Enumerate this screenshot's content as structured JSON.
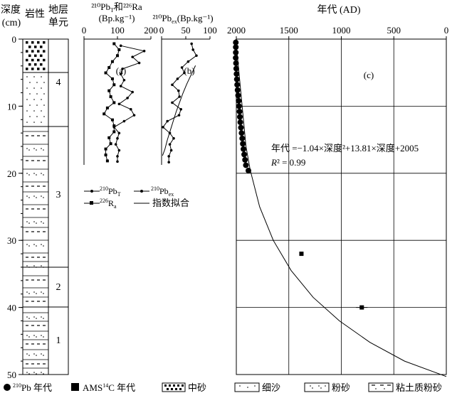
{
  "header": {
    "depth_title_l1": "深度",
    "depth_title_l2": "(cm)",
    "lith_title": "岩性",
    "unit_title_l1": "地层",
    "unit_title_l2": "单元"
  },
  "units": [
    "4",
    "3",
    "2",
    "1"
  ],
  "depth_ticks": [
    "0",
    "10",
    "20",
    "30",
    "40",
    "50"
  ],
  "panel_a": {
    "title_l1": "²¹⁰Pb",
    "title_l1_sub": "T",
    "title_l1_mid": "和",
    "title_l1_end": "²²⁶Ra",
    "title_l2": "(Bp.kg⁻¹)",
    "ticks": [
      "0",
      "100",
      "200"
    ],
    "letter": "(a)"
  },
  "panel_b": {
    "title": "²¹⁰Pb",
    "title_sub": "ex",
    "title_end": "(Bp.kg⁻¹)",
    "ticks": [
      "0",
      "50",
      "100"
    ],
    "letter": "(b)"
  },
  "panel_c": {
    "title": "年代 (AD)",
    "ticks": [
      "2000",
      "1500",
      "1000",
      "500",
      "0"
    ],
    "letter": "(c)",
    "equation": "年代 =−1.04×深度²+13.81×深度+2005",
    "r2_label": "R",
    "r2_value": "² = 0.99"
  },
  "legend_ab": {
    "pbT_sup": "210",
    "pbT_base": "Pb",
    "pbT_sub": "T",
    "ra_sup": "226",
    "ra_base": "R",
    "ra_sub": "a",
    "pbex_sup": "210",
    "pbex_base": "Pb",
    "pbex_sub": "ex",
    "fit": "指数拟合"
  },
  "legend_bottom": {
    "pb_age_sup": "210",
    "pb_age": "Pb 年代",
    "ams_pre": "AMS",
    "ams_sup": "14",
    "ams_post": "C 年代",
    "medium_sand": "中砂",
    "fine_sand": "细沙",
    "silt": "粉砂",
    "clayey_silt": "粘土质粉砂"
  },
  "chart_data": [
    {
      "type": "line",
      "panel": "a",
      "xlim": [
        0,
        200
      ],
      "ylim": [
        0,
        50
      ],
      "ylabel": "深度 (cm)",
      "series": [
        {
          "name": "²¹⁰PbT",
          "x": [
            110,
            180,
            145,
            165,
            115,
            110,
            120,
            110,
            145,
            130,
            105,
            140,
            150,
            120,
            90,
            105,
            100,
            95,
            105,
            100,
            100
          ],
          "y": [
            1,
            1.8,
            2.7,
            3.6,
            4.5,
            5.3,
            6.2,
            7.1,
            8,
            8.9,
            9.8,
            10.6,
            11.5,
            12.4,
            13.3,
            14.2,
            15,
            15.9,
            16.8,
            17.7,
            18.5
          ]
        },
        {
          "name": "²²⁶Ra",
          "x": [
            90,
            105,
            100,
            85,
            75,
            65,
            85,
            90,
            75,
            80,
            90,
            70,
            60,
            85,
            90,
            90,
            75,
            80,
            65,
            65,
            70
          ],
          "y": [
            0.7,
            1.6,
            2.5,
            3.4,
            4.3,
            5.1,
            6,
            6.9,
            7.8,
            8.7,
            9.6,
            10.4,
            11.3,
            12.2,
            13.1,
            14,
            14.9,
            15.8,
            16.6,
            17.5,
            18.4
          ]
        }
      ]
    },
    {
      "type": "line",
      "panel": "b",
      "xlim": [
        0,
        100
      ],
      "ylim": [
        0,
        50
      ],
      "series": [
        {
          "name": "²¹⁰Pbex",
          "x": [
            62,
            65,
            72,
            55,
            42,
            47,
            33,
            22,
            35,
            37,
            22,
            40,
            36,
            12,
            3,
            17,
            25,
            17,
            20,
            15,
            15
          ],
          "y": [
            0.7,
            1.6,
            2.5,
            3.4,
            4.3,
            5.1,
            6,
            6.9,
            7.8,
            8.7,
            9.6,
            10.6,
            11.5,
            12.4,
            13.3,
            14.2,
            15,
            15.9,
            16.8,
            17.7,
            18.6
          ]
        },
        {
          "name": "指数拟合",
          "x": [
            70,
            61,
            52,
            44,
            37,
            30,
            24,
            18,
            12,
            7,
            2
          ],
          "y": [
            4,
            5.4,
            6.8,
            8.2,
            9.6,
            11,
            12.4,
            13.8,
            15.2,
            16.6,
            17.6
          ]
        }
      ]
    },
    {
      "type": "scatter",
      "panel": "c",
      "xlim": [
        2000,
        0
      ],
      "ylim": [
        0,
        50
      ],
      "title": "年代 (AD)",
      "series": [
        {
          "name": "²¹⁰Pb 年代",
          "x": [
            2005,
            2005,
            2005,
            2006,
            2003,
            2001,
            1998,
            1995,
            1992,
            1988,
            1983,
            1978,
            1974,
            1969,
            1966,
            1962,
            1956,
            1950,
            1944,
            1938,
            1932,
            1925,
            1917,
            1909,
            1885
          ],
          "y": [
            0.5,
            1.2,
            2,
            2.8,
            3.6,
            4.4,
            5.2,
            6,
            6.8,
            7.6,
            8.4,
            9.2,
            10,
            10.8,
            11.6,
            12.4,
            13.2,
            14,
            14.8,
            15.6,
            16.4,
            17.2,
            18,
            18.8,
            19.6
          ]
        },
        {
          "name": "AMS¹⁴C 年代",
          "x": [
            1380,
            805
          ],
          "y": [
            32,
            40
          ],
          "x_err": [
            20,
            55
          ]
        },
        {
          "name": "fit",
          "x": [
            2005,
            1908,
            1868,
            1778,
            1648,
            1478,
            1268,
            1018,
            728,
            398,
            0
          ],
          "y": [
            0,
            16,
            19.5,
            25,
            30,
            34.5,
            38.5,
            42,
            45.2,
            48,
            50.3
          ]
        }
      ]
    }
  ]
}
